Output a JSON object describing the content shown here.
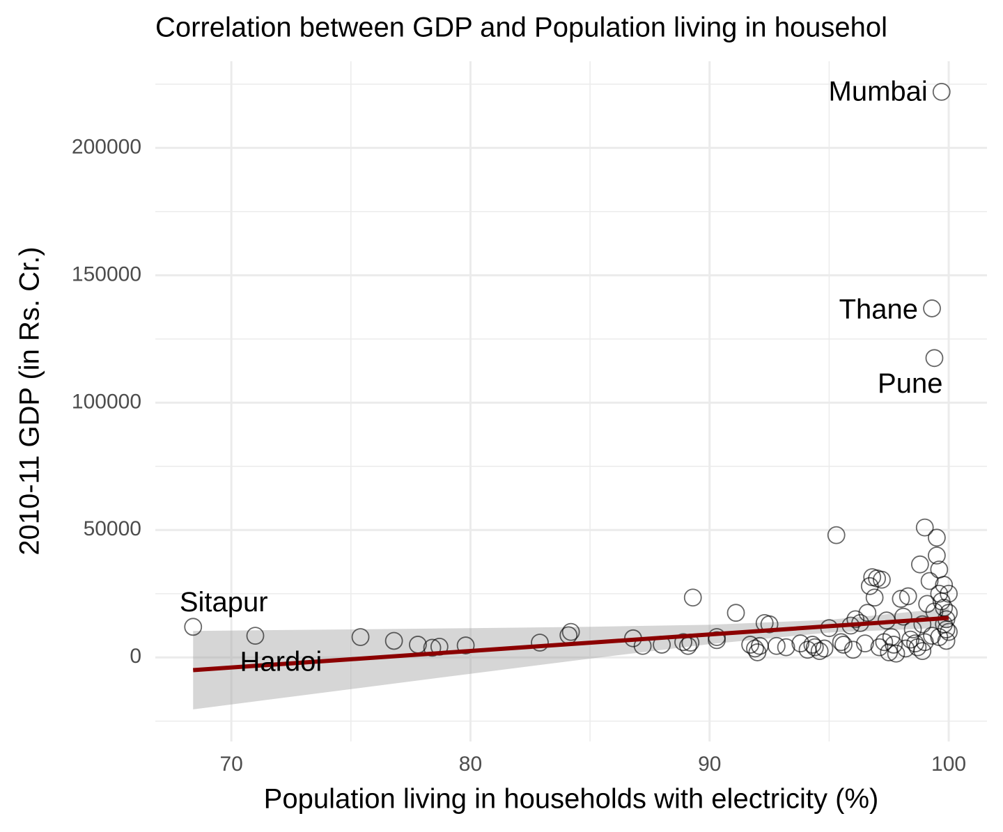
{
  "chart_data": {
    "type": "scatter",
    "title": "Correlation between GDP and Population living in househol",
    "x_label": "Population living in households with electricity (%)",
    "y_label": "2010-11 GDP (in Rs. Cr.)",
    "xlim": [
      66.82,
      101.6
    ],
    "ylim": [
      -33000,
      234000
    ],
    "xticks": [
      70,
      80,
      90,
      100
    ],
    "yticks": [
      0,
      50000,
      100000,
      150000,
      200000
    ],
    "x_minor_ticks": [
      75,
      85,
      95
    ],
    "y_minor_ticks": [
      -25000,
      25000,
      75000,
      125000,
      175000,
      225000
    ],
    "grid": true,
    "color": "#000000",
    "series": [
      {
        "x": [
          75.4,
          76.8,
          77.8,
          78.4,
          78.7,
          79.8,
          82.9,
          84.1,
          84.2,
          86.8,
          87.2,
          88.0,
          88.9,
          89.1,
          89.2,
          89.3,
          90.3,
          90.3,
          91.1,
          91.7,
          91.9,
          92.0,
          92.1,
          92.3,
          92.5,
          92.8,
          93.2,
          93.8,
          94.1,
          94.3,
          94.4,
          94.6,
          94.8,
          95.0,
          95.3,
          95.5,
          95.6,
          95.9,
          96.0,
          96.1,
          96.3,
          96.5,
          96.6,
          96.7,
          96.8,
          96.9,
          97.0,
          97.1,
          97.2,
          97.3,
          97.4,
          97.5,
          97.6,
          97.7,
          97.8,
          98.0,
          98.1,
          98.2,
          98.3,
          98.4,
          98.5,
          98.6,
          98.8,
          98.9,
          99.0,
          99.1,
          99.2,
          99.3,
          99.4,
          99.5,
          99.5,
          99.6,
          99.6,
          99.7,
          99.8,
          99.8,
          99.9,
          99.9,
          100,
          100,
          99.9,
          99.6,
          99.0,
          98.7,
          98.9,
          99.8,
          100
        ],
        "values": [
          8000,
          6500,
          5000,
          3800,
          4200,
          4700,
          5800,
          8700,
          10000,
          7500,
          4500,
          5000,
          6000,
          4500,
          5800,
          23500,
          8000,
          6800,
          17500,
          5000,
          3500,
          2000,
          4500,
          13500,
          13000,
          4500,
          4000,
          5500,
          3000,
          5000,
          4000,
          2500,
          3500,
          11500,
          48000,
          6000,
          5000,
          12500,
          3000,
          15000,
          13500,
          5500,
          17500,
          28000,
          31500,
          23500,
          31000,
          4000,
          30500,
          6000,
          14500,
          2000,
          8000,
          5000,
          1500,
          23000,
          16000,
          3500,
          24000,
          7000,
          11000,
          5500,
          36500,
          13000,
          51000,
          21000,
          30000,
          8500,
          18000,
          47000,
          40000,
          34500,
          25000,
          22000,
          19500,
          28500,
          15000,
          11000,
          25000,
          10000,
          6500,
          8000,
          6000,
          4000,
          2500,
          13000,
          17500
        ]
      },
      {
        "x": [
          99.7,
          99.3,
          99.4,
          68.4,
          71.0
        ],
        "values": [
          222000,
          137000,
          117500,
          12000,
          8500
        ],
        "labels": [
          "Mumbai",
          "Thane",
          "Pune",
          "Sitapur",
          "Hardoi"
        ]
      }
    ],
    "fit": {
      "color": "#8b0000",
      "band_color": "#999999",
      "x": [
        68.4,
        75,
        80,
        85,
        90,
        95,
        100
      ],
      "values": [
        -5000,
        -720,
        2530,
        5770,
        9020,
        12260,
        15500
      ],
      "lower": [
        -20400,
        -12440,
        -6410,
        -480,
        5220,
        9760,
        11700
      ],
      "upper": [
        10400,
        11000,
        11470,
        12020,
        12820,
        14760,
        19300
      ]
    }
  }
}
